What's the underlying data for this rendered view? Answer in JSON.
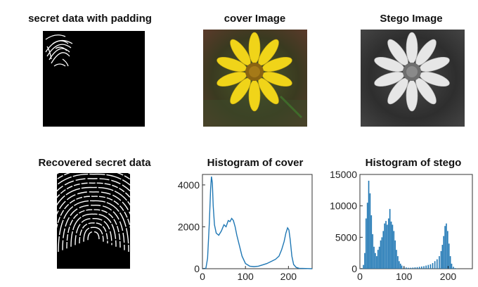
{
  "panels": {
    "secret": {
      "title": "secret data with padding"
    },
    "cover": {
      "title": "cover Image"
    },
    "stego": {
      "title": "Stego Image"
    },
    "recovered": {
      "title": "Recovered secret data"
    },
    "hist_cover": {
      "title": "Histogram of cover"
    },
    "hist_stego": {
      "title": "Histogram of stego"
    }
  },
  "colors": {
    "line": "#1f77b4",
    "flower_petal": "#f2d61e",
    "flower_center": "#7a5a12",
    "background_green": "#2f4a22"
  },
  "chart_data": [
    {
      "type": "line",
      "title": "Histogram of cover",
      "xlim": [
        0,
        255
      ],
      "ylim": [
        0,
        4500
      ],
      "xticks": [
        "0",
        "100",
        "200"
      ],
      "yticks": [
        "0",
        "2000",
        "4000"
      ],
      "x": [
        0,
        8,
        12,
        16,
        19,
        21,
        23,
        25,
        28,
        32,
        38,
        44,
        50,
        55,
        60,
        64,
        68,
        72,
        76,
        80,
        86,
        92,
        100,
        110,
        120,
        130,
        140,
        150,
        160,
        170,
        178,
        184,
        190,
        194,
        198,
        201,
        204,
        208,
        212,
        218,
        225,
        240,
        255
      ],
      "y": [
        0,
        20,
        500,
        2200,
        3800,
        4400,
        4100,
        3000,
        2100,
        1700,
        1600,
        1800,
        2100,
        2000,
        2300,
        2250,
        2400,
        2300,
        2000,
        1600,
        1100,
        600,
        250,
        120,
        100,
        120,
        180,
        250,
        350,
        450,
        600,
        900,
        1300,
        1700,
        1950,
        1850,
        1400,
        600,
        200,
        60,
        20,
        10,
        0
      ]
    },
    {
      "type": "bar",
      "title": "Histogram of stego",
      "xlim": [
        0,
        255
      ],
      "ylim": [
        0,
        15000
      ],
      "xticks": [
        "0",
        "100",
        "200"
      ],
      "yticks": [
        "0",
        "5000",
        "10000",
        "15000"
      ],
      "x": [
        4,
        8,
        11,
        14,
        17,
        20,
        23,
        26,
        29,
        32,
        35,
        38,
        41,
        44,
        47,
        50,
        53,
        56,
        59,
        62,
        65,
        68,
        71,
        74,
        77,
        80,
        83,
        86,
        89,
        92,
        95,
        100,
        105,
        110,
        115,
        120,
        125,
        130,
        135,
        140,
        145,
        150,
        155,
        160,
        165,
        170,
        175,
        180,
        184,
        187,
        190,
        193,
        196,
        199,
        202,
        205,
        208,
        212,
        216,
        220
      ],
      "y": [
        100,
        600,
        2500,
        8000,
        10500,
        14000,
        12000,
        8500,
        5500,
        3500,
        2500,
        2000,
        3000,
        3500,
        4500,
        5000,
        6000,
        7200,
        7600,
        7000,
        8000,
        9500,
        7500,
        7000,
        6000,
        4500,
        3000,
        2000,
        1200,
        800,
        500,
        300,
        200,
        150,
        150,
        180,
        220,
        250,
        300,
        350,
        400,
        500,
        600,
        700,
        900,
        1200,
        1500,
        2000,
        2800,
        3800,
        5200,
        6800,
        7200,
        6000,
        4000,
        2000,
        800,
        300,
        100,
        20
      ]
    }
  ]
}
